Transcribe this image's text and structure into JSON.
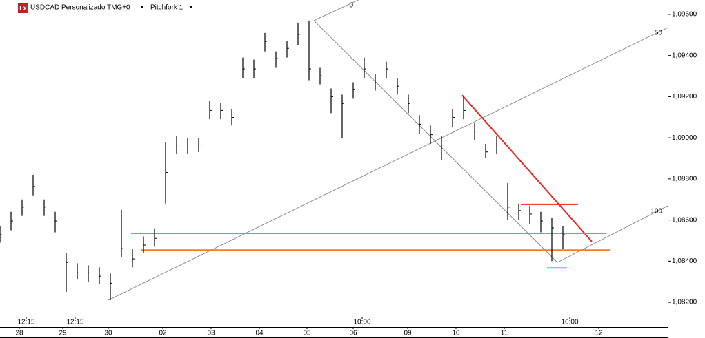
{
  "chart_data": {
    "type": "ohlc",
    "symbol_icon": "Fx",
    "title": "USDCAD Personalizado TMG+0",
    "indicator": "Pitchfork 1",
    "color": "#000000",
    "x": [
      0,
      4,
      8,
      12,
      16,
      20,
      24,
      28,
      32,
      36,
      40,
      44,
      48,
      52,
      56,
      60,
      64,
      68,
      72,
      76,
      80,
      84,
      88,
      92,
      96,
      100,
      104,
      108,
      112,
      116,
      120,
      124,
      128,
      132,
      136,
      140,
      144,
      148,
      152,
      156,
      160,
      164,
      168,
      172,
      176,
      180,
      184,
      188,
      192,
      196,
      200,
      204
    ],
    "high": [
      1.0857,
      1.0864,
      1.087,
      1.0882,
      1.087,
      1.0864,
      1.0844,
      1.0839,
      1.0838,
      1.0837,
      1.0834,
      1.0865,
      1.0846,
      1.0852,
      1.0856,
      1.0898,
      1.0901,
      1.09,
      1.09,
      1.0918,
      1.0917,
      1.0914,
      1.0939,
      1.0938,
      1.0951,
      1.0942,
      1.0947,
      1.0956,
      1.0957,
      1.0934,
      1.0924,
      1.0921,
      1.0927,
      1.0939,
      1.0931,
      1.0937,
      1.0929,
      1.0921,
      1.0911,
      1.0906,
      1.0901,
      1.0914,
      1.092,
      1.0907,
      1.0897,
      1.0901,
      1.0878,
      1.0868,
      1.0867,
      1.0864,
      1.0861,
      1.0857
    ],
    "low": [
      1.0849,
      1.0855,
      1.0862,
      1.0872,
      1.0862,
      1.0854,
      1.0825,
      1.0831,
      1.083,
      1.0829,
      1.0821,
      1.0842,
      1.0837,
      1.0844,
      1.0847,
      1.0868,
      1.0892,
      1.0892,
      1.0893,
      1.0909,
      1.0909,
      1.0906,
      1.0929,
      1.0929,
      1.0942,
      1.0934,
      1.0939,
      1.0945,
      1.0928,
      1.0926,
      1.0912,
      1.09,
      1.0919,
      1.0929,
      1.0923,
      1.0929,
      1.0921,
      1.0912,
      1.0902,
      1.0897,
      1.0889,
      1.0905,
      1.0909,
      1.0899,
      1.089,
      1.0892,
      1.086,
      1.086,
      1.0858,
      1.0854,
      1.084,
      1.0846
    ],
    "close": [
      1.08528,
      1.08595,
      1.08663,
      1.08763,
      1.08663,
      1.08595,
      1.08394,
      1.08343,
      1.08343,
      1.08327,
      1.08293,
      1.08461,
      1.08411,
      1.08478,
      1.08511,
      1.08831,
      1.08965,
      1.08965,
      1.08965,
      1.09133,
      1.09133,
      1.09099,
      1.09335,
      1.09335,
      1.09469,
      1.09385,
      1.09435,
      1.09503,
      1.09335,
      1.09301,
      1.092,
      1.09167,
      1.09234,
      1.09335,
      1.09267,
      1.09335,
      1.09251,
      1.09167,
      1.09066,
      1.09015,
      1.08965,
      1.09099,
      1.09133,
      1.09032,
      1.08931,
      1.08965,
      1.08663,
      1.08646,
      1.08629,
      1.08595,
      1.08562,
      1.08528
    ],
    "xlim": [
      0,
      242
    ],
    "ylim": [
      1.0813,
      1.0967
    ],
    "yticks": [
      {
        "value": 1.082,
        "label": "1,08200"
      },
      {
        "value": 1.084,
        "label": "1,08400"
      },
      {
        "value": 1.086,
        "label": "1,08600"
      },
      {
        "value": 1.088,
        "label": "1,08800"
      },
      {
        "value": 1.09,
        "label": "1,09000"
      },
      {
        "value": 1.092,
        "label": "1,09200"
      },
      {
        "value": 1.094,
        "label": "1,09400"
      },
      {
        "value": 1.096,
        "label": "1,09600"
      }
    ],
    "time_ticks": [
      {
        "value": 9.5,
        "label": "12:15"
      },
      {
        "value": 27.25,
        "label": "12:15"
      },
      {
        "value": 131.25,
        "label": "10:00"
      },
      {
        "value": 206.5,
        "label": "16:00"
      }
    ],
    "xticks": [
      {
        "value": 7,
        "label": "28"
      },
      {
        "value": 22.75,
        "label": "29"
      },
      {
        "value": 39.25,
        "label": "30"
      },
      {
        "value": 59,
        "label": "02"
      },
      {
        "value": 76.5,
        "label": "03"
      },
      {
        "value": 94,
        "label": "04"
      },
      {
        "value": 111.25,
        "label": "05"
      },
      {
        "value": 128,
        "label": "06"
      },
      {
        "value": 147.75,
        "label": "09"
      },
      {
        "value": 165.25,
        "label": "10"
      },
      {
        "value": 182.75,
        "label": "11"
      },
      {
        "value": 217,
        "label": "12"
      }
    ],
    "overlays": [
      {
        "color": "#8c8c8c",
        "x": [
          113.75,
          202
        ],
        "y": [
          1.0957,
          1.08394
        ]
      },
      {
        "color": "#8c8c8c",
        "label": "0",
        "x": [
          113.75,
          130
        ],
        "y": [
          1.0957,
          1.09671
        ]
      },
      {
        "color": "#8c8c8c",
        "label": "50",
        "x": [
          39.25,
          242
        ],
        "y": [
          1.0821,
          1.09536
        ]
      },
      {
        "color": "#8c8c8c",
        "label": "100",
        "x": [
          202,
          242
        ],
        "y": [
          1.08394,
          1.08669
        ]
      },
      {
        "color": "#e8241c",
        "x": [
          167.5,
          214.5
        ],
        "y": [
          1.09207,
          1.08495
        ]
      },
      {
        "color": "#e8241c",
        "x": [
          188.75,
          209.5
        ],
        "y": [
          1.08676,
          1.08676
        ]
      },
      {
        "color": "#ef7d2c",
        "x": [
          47.5,
          219.5
        ],
        "y": [
          1.08535,
          1.08535
        ]
      },
      {
        "color": "#ef7d2c",
        "x": [
          51.25,
          221.25
        ],
        "y": [
          1.08454,
          1.08454
        ]
      },
      {
        "color": "#27d4e8",
        "x": [
          198.25,
          205.5
        ],
        "y": [
          1.08367,
          1.08367
        ]
      }
    ]
  }
}
